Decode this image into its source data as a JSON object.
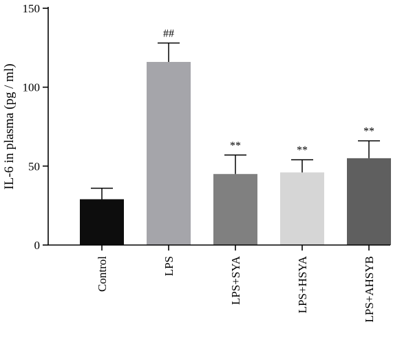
{
  "chart_data": {
    "type": "bar",
    "title": "",
    "xlabel": "",
    "ylabel": "IL-6 in plasma (pg / ml)",
    "ylim": [
      0,
      150
    ],
    "yticks": [
      0,
      50,
      100,
      150
    ],
    "grid": false,
    "categories": [
      "Control",
      "LPS",
      "LPS+SYA",
      "LPS+HSYA",
      "LPS+AHSYB"
    ],
    "values": [
      29,
      116,
      45,
      46,
      55
    ],
    "errors": [
      7,
      12,
      12,
      8,
      11
    ],
    "significance": [
      "",
      "##",
      "**",
      "**",
      "**"
    ],
    "colors": [
      "#0d0d0d",
      "#a5a5aa",
      "#808080",
      "#d6d6d6",
      "#5f5f5f"
    ]
  }
}
